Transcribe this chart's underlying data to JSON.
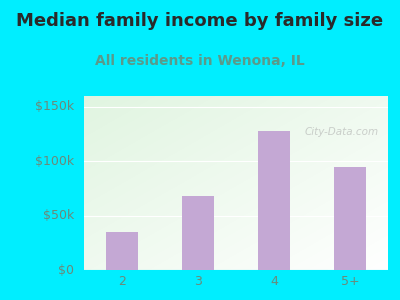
{
  "title": "Median family income by family size",
  "subtitle": "All residents in Wenona, IL",
  "categories": [
    "2",
    "3",
    "4",
    "5+"
  ],
  "values": [
    35000,
    68000,
    128000,
    95000
  ],
  "bar_color": "#c4a8d4",
  "title_color": "#2a2a2a",
  "subtitle_color": "#5a9a8a",
  "background_outer": "#00eeff",
  "yticks": [
    0,
    50000,
    100000,
    150000
  ],
  "ytick_labels": [
    "$0",
    "$50k",
    "$100k",
    "$150k"
  ],
  "ylim": [
    0,
    160000
  ],
  "title_fontsize": 13,
  "subtitle_fontsize": 10,
  "tick_fontsize": 9,
  "axis_tick_color": "#6a8a7a",
  "watermark": "City-Data.com"
}
